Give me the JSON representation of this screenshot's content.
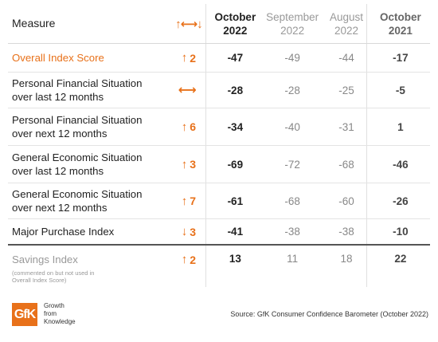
{
  "header": {
    "measure": "Measure",
    "change_icon": "up-down-arrows-icon",
    "cols": [
      {
        "line1": "October",
        "line2": "2022"
      },
      {
        "line1": "September",
        "line2": "2022"
      },
      {
        "line1": "August",
        "line2": "2022"
      },
      {
        "line1": "October",
        "line2": "2021"
      }
    ]
  },
  "rows": [
    {
      "line1": "Overall Index Score",
      "line2": "",
      "dir": "up",
      "arrow": "↑",
      "change": "2",
      "oct22": "-47",
      "sep22": "-49",
      "aug22": "-44",
      "oct21": "-17"
    },
    {
      "line1": "Personal Financial Situation",
      "line2": "over last 12 months",
      "dir": "flat",
      "arrow": "⟷",
      "change": "",
      "oct22": "-28",
      "sep22": "-28",
      "aug22": "-25",
      "oct21": "-5"
    },
    {
      "line1": "Personal Financial Situation",
      "line2": "over next 12 months",
      "dir": "up",
      "arrow": "↑",
      "change": "6",
      "oct22": "-34",
      "sep22": "-40",
      "aug22": "-31",
      "oct21": "1"
    },
    {
      "line1": "General Economic Situation",
      "line2": "over last 12 months",
      "dir": "up",
      "arrow": "↑",
      "change": "3",
      "oct22": "-69",
      "sep22": "-72",
      "aug22": "-68",
      "oct21": "-46"
    },
    {
      "line1": "General Economic Situation",
      "line2": "over next 12 months",
      "dir": "up",
      "arrow": "↑",
      "change": "7",
      "oct22": "-61",
      "sep22": "-68",
      "aug22": "-60",
      "oct21": "-26"
    },
    {
      "line1": "Major Purchase Index",
      "line2": "",
      "dir": "down",
      "arrow": "↓",
      "change": "3",
      "oct22": "-41",
      "sep22": "-38",
      "aug22": "-38",
      "oct21": "-10"
    },
    {
      "line1": "Savings Index",
      "line2": "",
      "note": "(commented on but not used in Overall Index Score)",
      "dir": "up",
      "arrow": "↑",
      "change": "2",
      "oct22": "13",
      "sep22": "11",
      "aug22": "18",
      "oct21": "22"
    }
  ],
  "footer": {
    "logo_text": "GfK",
    "tagline_1": "Growth",
    "tagline_2": "from",
    "tagline_3": "Knowledge",
    "source": "Source: GfK Consumer Confidence Barometer (October 2022)"
  },
  "colors": {
    "accent": "#e8711a",
    "text": "#222222",
    "muted": "#999999"
  }
}
